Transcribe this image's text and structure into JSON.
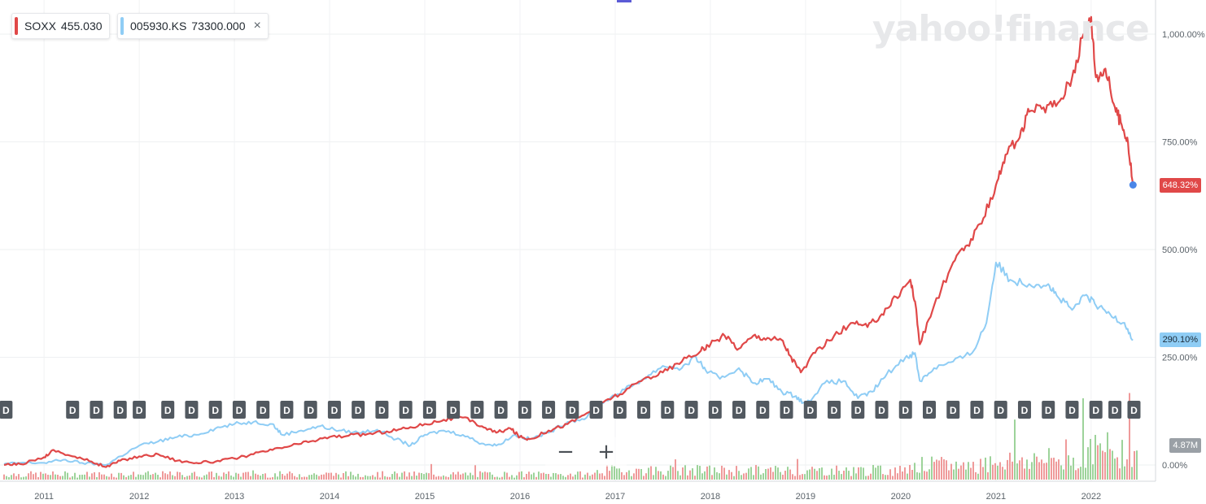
{
  "watermark": "yahoo!finance",
  "legend": [
    {
      "symbol": "SOXX",
      "price": "455.030",
      "color": "#e04848"
    },
    {
      "symbol": "005930.KS",
      "price": "73300.000",
      "color": "#8fcdf5"
    }
  ],
  "close_glyph": "×",
  "badges": {
    "soxx": "648.32%",
    "samsung": "290.10%",
    "volume": "4.87M"
  },
  "dividend_marker": "D",
  "zoom": {
    "out": "−",
    "in": "+"
  },
  "colors": {
    "soxx": "#e04848",
    "samsung": "#8fcdf5",
    "vol_up": "#9dd39a",
    "vol_down": "#ef9a9a",
    "marker_bg": "#525960",
    "current_dot": "#4a86e8",
    "volume_badge": "#9aa0a6"
  },
  "chart_data": {
    "type": "line",
    "x_range": [
      2010.58,
      2022.48
    ],
    "y_ticks": [
      "0.00%",
      "250.00%",
      "500.00%",
      "750.00%",
      "1,000.00%"
    ],
    "y_tick_values": [
      0,
      250,
      500,
      750,
      1000
    ],
    "x_ticks": [
      "2011",
      "2012",
      "2013",
      "2014",
      "2015",
      "2016",
      "2017",
      "2018",
      "2019",
      "2020",
      "2021",
      "2022"
    ],
    "x_tick_values": [
      2011,
      2012,
      2013,
      2014,
      2015,
      2016,
      2017,
      2018,
      2019,
      2020,
      2021,
      2022
    ],
    "series": [
      {
        "name": "SOXX",
        "color": "#e04848",
        "points": [
          [
            2010.58,
            0
          ],
          [
            2010.75,
            2
          ],
          [
            2011.0,
            18
          ],
          [
            2011.1,
            35
          ],
          [
            2011.3,
            20
          ],
          [
            2011.5,
            8
          ],
          [
            2011.65,
            -5
          ],
          [
            2011.8,
            10
          ],
          [
            2012.0,
            20
          ],
          [
            2012.2,
            25
          ],
          [
            2012.4,
            10
          ],
          [
            2012.6,
            5
          ],
          [
            2012.8,
            8
          ],
          [
            2013.0,
            15
          ],
          [
            2013.2,
            25
          ],
          [
            2013.4,
            35
          ],
          [
            2013.6,
            45
          ],
          [
            2013.8,
            55
          ],
          [
            2014.0,
            65
          ],
          [
            2014.2,
            68
          ],
          [
            2014.4,
            72
          ],
          [
            2014.6,
            78
          ],
          [
            2014.8,
            85
          ],
          [
            2015.0,
            95
          ],
          [
            2015.2,
            105
          ],
          [
            2015.4,
            110
          ],
          [
            2015.6,
            90
          ],
          [
            2015.75,
            75
          ],
          [
            2015.9,
            85
          ],
          [
            2016.0,
            65
          ],
          [
            2016.1,
            60
          ],
          [
            2016.3,
            80
          ],
          [
            2016.5,
            95
          ],
          [
            2016.7,
            120
          ],
          [
            2016.9,
            150
          ],
          [
            2017.1,
            170
          ],
          [
            2017.3,
            200
          ],
          [
            2017.5,
            215
          ],
          [
            2017.7,
            240
          ],
          [
            2017.9,
            265
          ],
          [
            2018.0,
            280
          ],
          [
            2018.15,
            300
          ],
          [
            2018.3,
            270
          ],
          [
            2018.45,
            300
          ],
          [
            2018.6,
            295
          ],
          [
            2018.75,
            290
          ],
          [
            2018.85,
            250
          ],
          [
            2018.95,
            215
          ],
          [
            2019.1,
            260
          ],
          [
            2019.3,
            300
          ],
          [
            2019.5,
            330
          ],
          [
            2019.65,
            320
          ],
          [
            2019.8,
            350
          ],
          [
            2019.95,
            390
          ],
          [
            2020.1,
            430
          ],
          [
            2020.15,
            380
          ],
          [
            2020.2,
            280
          ],
          [
            2020.35,
            370
          ],
          [
            2020.55,
            470
          ],
          [
            2020.7,
            510
          ],
          [
            2020.85,
            560
          ],
          [
            2021.0,
            650
          ],
          [
            2021.1,
            720
          ],
          [
            2021.25,
            760
          ],
          [
            2021.35,
            820
          ],
          [
            2021.5,
            830
          ],
          [
            2021.65,
            840
          ],
          [
            2021.8,
            900
          ],
          [
            2021.92,
            1000
          ],
          [
            2022.0,
            1040
          ],
          [
            2022.05,
            900
          ],
          [
            2022.15,
            920
          ],
          [
            2022.25,
            830
          ],
          [
            2022.32,
            790
          ],
          [
            2022.38,
            760
          ],
          [
            2022.44,
            650
          ]
        ]
      },
      {
        "name": "005930.KS",
        "color": "#8fcdf5",
        "points": [
          [
            2010.58,
            2
          ],
          [
            2010.75,
            5
          ],
          [
            2011.0,
            5
          ],
          [
            2011.2,
            12
          ],
          [
            2011.4,
            5
          ],
          [
            2011.65,
            0
          ],
          [
            2011.8,
            20
          ],
          [
            2012.0,
            45
          ],
          [
            2012.2,
            55
          ],
          [
            2012.4,
            65
          ],
          [
            2012.6,
            70
          ],
          [
            2012.8,
            85
          ],
          [
            2013.0,
            95
          ],
          [
            2013.2,
            100
          ],
          [
            2013.4,
            95
          ],
          [
            2013.5,
            70
          ],
          [
            2013.7,
            80
          ],
          [
            2013.9,
            90
          ],
          [
            2014.1,
            80
          ],
          [
            2014.3,
            75
          ],
          [
            2014.5,
            82
          ],
          [
            2014.7,
            60
          ],
          [
            2014.85,
            45
          ],
          [
            2015.0,
            70
          ],
          [
            2015.2,
            80
          ],
          [
            2015.4,
            70
          ],
          [
            2015.6,
            50
          ],
          [
            2015.75,
            45
          ],
          [
            2015.95,
            70
          ],
          [
            2016.1,
            60
          ],
          [
            2016.3,
            75
          ],
          [
            2016.5,
            100
          ],
          [
            2016.7,
            110
          ],
          [
            2016.9,
            150
          ],
          [
            2017.1,
            175
          ],
          [
            2017.3,
            200
          ],
          [
            2017.5,
            230
          ],
          [
            2017.7,
            225
          ],
          [
            2017.85,
            250
          ],
          [
            2017.95,
            220
          ],
          [
            2018.1,
            200
          ],
          [
            2018.3,
            225
          ],
          [
            2018.45,
            190
          ],
          [
            2018.6,
            200
          ],
          [
            2018.75,
            170
          ],
          [
            2018.9,
            160
          ],
          [
            2019.0,
            140
          ],
          [
            2019.2,
            190
          ],
          [
            2019.4,
            195
          ],
          [
            2019.55,
            155
          ],
          [
            2019.7,
            170
          ],
          [
            2019.85,
            210
          ],
          [
            2020.05,
            250
          ],
          [
            2020.15,
            260
          ],
          [
            2020.2,
            195
          ],
          [
            2020.35,
            225
          ],
          [
            2020.55,
            240
          ],
          [
            2020.75,
            260
          ],
          [
            2020.9,
            330
          ],
          [
            2021.0,
            470
          ],
          [
            2021.15,
            430
          ],
          [
            2021.35,
            420
          ],
          [
            2021.55,
            420
          ],
          [
            2021.65,
            390
          ],
          [
            2021.8,
            360
          ],
          [
            2021.95,
            395
          ],
          [
            2022.05,
            370
          ],
          [
            2022.2,
            350
          ],
          [
            2022.35,
            330
          ],
          [
            2022.44,
            290
          ]
        ]
      }
    ],
    "dividend_markers_x": [
      2010.6,
      2011.3,
      2011.55,
      2011.8,
      2012.0,
      2012.3,
      2012.55,
      2012.8,
      2013.05,
      2013.3,
      2013.55,
      2013.8,
      2014.05,
      2014.3,
      2014.55,
      2014.8,
      2015.05,
      2015.3,
      2015.55,
      2015.8,
      2016.05,
      2016.3,
      2016.55,
      2016.8,
      2017.05,
      2017.3,
      2017.55,
      2017.8,
      2018.05,
      2018.3,
      2018.55,
      2018.8,
      2019.05,
      2019.3,
      2019.55,
      2019.8,
      2020.05,
      2020.3,
      2020.55,
      2020.8,
      2021.05,
      2021.3,
      2021.55,
      2021.8,
      2022.05,
      2022.25,
      2022.45
    ]
  }
}
